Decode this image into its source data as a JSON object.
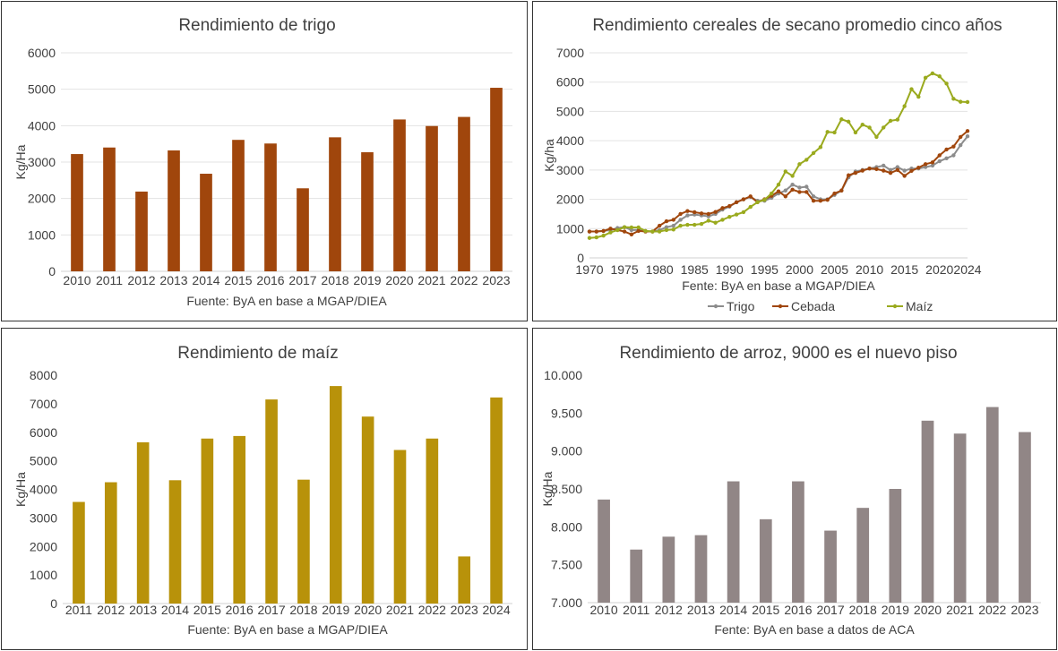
{
  "chart_data": [
    {
      "type": "bar",
      "title": "Rendimiento de trigo",
      "ylabel": "Kg/Ha",
      "xlabel": "",
      "source": "Fuente: ByA en base a MGAP/DIEA",
      "ylim": [
        0,
        6000
      ],
      "yticks": [
        "0",
        "1000",
        "2000",
        "3000",
        "4000",
        "5000",
        "6000"
      ],
      "categories": [
        "2010",
        "2011",
        "2012",
        "2013",
        "2014",
        "2015",
        "2016",
        "2017",
        "2018",
        "2019",
        "2020",
        "2021",
        "2022",
        "2023"
      ],
      "values": [
        3220,
        3400,
        2190,
        3320,
        2680,
        3610,
        3510,
        2280,
        3680,
        3270,
        4170,
        3990,
        4240,
        5040
      ],
      "color": "#A0460C",
      "grid": true
    },
    {
      "type": "line",
      "title": "Rendimiento cereales de secano promedio cinco años",
      "ylabel": "Kg/ha",
      "xlabel": "",
      "source": "Fente: ByA en base a MGAP/DIEA",
      "ylim": [
        0,
        7000
      ],
      "xlim": [
        1970,
        2024
      ],
      "yticks": [
        "0",
        "1000",
        "2000",
        "3000",
        "4000",
        "5000",
        "6000",
        "7000"
      ],
      "xticks": [
        "1970",
        "1975",
        "1980",
        "1985",
        "1990",
        "1995",
        "2000",
        "2005",
        "2010",
        "2015",
        "2020",
        "2024"
      ],
      "x_start": 1970,
      "legend_position": "bottom",
      "grid": true,
      "series": [
        {
          "name": "Trigo",
          "color": "#8C8C8C",
          "values": [
            900,
            900,
            920,
            950,
            1020,
            1050,
            950,
            950,
            920,
            900,
            950,
            1050,
            1100,
            1300,
            1450,
            1480,
            1450,
            1420,
            1500,
            1650,
            1750,
            1900,
            2000,
            2080,
            1950,
            1950,
            2050,
            2200,
            2300,
            2500,
            2400,
            2430,
            2100,
            2000,
            2000,
            2150,
            2300,
            2750,
            2950,
            3000,
            3050,
            3100,
            3150,
            3000,
            3100,
            2980,
            3050,
            3050,
            3100,
            3150,
            3300,
            3400,
            3500,
            3850,
            4150
          ]
        },
        {
          "name": "Cebada",
          "color": "#A0460C",
          "values": [
            900,
            900,
            920,
            1000,
            950,
            900,
            800,
            920,
            900,
            900,
            1100,
            1250,
            1300,
            1500,
            1600,
            1560,
            1520,
            1500,
            1570,
            1700,
            1770,
            1900,
            2000,
            2100,
            1900,
            2000,
            2120,
            2270,
            2100,
            2330,
            2250,
            2250,
            1950,
            1950,
            1980,
            2200,
            2300,
            2820,
            2900,
            2980,
            3050,
            3030,
            2980,
            2900,
            3000,
            2800,
            2970,
            3080,
            3200,
            3260,
            3500,
            3700,
            3800,
            4130,
            4330
          ]
        },
        {
          "name": "Maíz",
          "color": "#9AAA1E",
          "values": [
            680,
            700,
            760,
            870,
            950,
            1050,
            1040,
            1040,
            920,
            900,
            900,
            950,
            970,
            1100,
            1130,
            1130,
            1160,
            1270,
            1200,
            1300,
            1400,
            1480,
            1560,
            1740,
            1900,
            1980,
            2200,
            2500,
            2950,
            2800,
            3200,
            3350,
            3580,
            3780,
            4300,
            4280,
            4730,
            4650,
            4280,
            4550,
            4450,
            4130,
            4450,
            4680,
            4720,
            5180,
            5760,
            5500,
            6150,
            6300,
            6200,
            5950,
            5430,
            5330,
            5320
          ]
        }
      ]
    },
    {
      "type": "bar",
      "title": "Rendimiento de maíz",
      "ylabel": "Kg/Ha",
      "xlabel": "",
      "source": "Fuente: ByA en base a MGAP/DIEA",
      "ylim": [
        0,
        8000
      ],
      "yticks": [
        "0",
        "1000",
        "2000",
        "3000",
        "4000",
        "5000",
        "6000",
        "7000",
        "8000"
      ],
      "categories": [
        "2011",
        "2012",
        "2013",
        "2014",
        "2015",
        "2016",
        "2017",
        "2018",
        "2019",
        "2020",
        "2021",
        "2022",
        "2023",
        "2024"
      ],
      "values": [
        3560,
        4250,
        5650,
        4320,
        5780,
        5870,
        7150,
        4340,
        7620,
        6550,
        5380,
        5780,
        1650,
        7220
      ],
      "color": "#B8920A",
      "grid": false
    },
    {
      "type": "bar",
      "title": "Rendimiento de arroz, 9000 es el nuevo piso",
      "ylabel": "Kg/Ha",
      "xlabel": "",
      "source": "Fente: ByA en base a datos de ACA",
      "ylim": [
        7000,
        10000
      ],
      "yticks": [
        "7.000",
        "7.500",
        "8.000",
        "8.500",
        "9.000",
        "9.500",
        "10.000"
      ],
      "categories": [
        "2010",
        "2011",
        "2012",
        "2013",
        "2014",
        "2015",
        "2016",
        "2017",
        "2018",
        "2019",
        "2020",
        "2021",
        "2022",
        "2023"
      ],
      "values": [
        8360,
        7700,
        7870,
        7890,
        8600,
        8100,
        8600,
        7950,
        8250,
        8500,
        9400,
        9230,
        9580,
        9250
      ],
      "color": "#918686",
      "grid": false
    }
  ]
}
